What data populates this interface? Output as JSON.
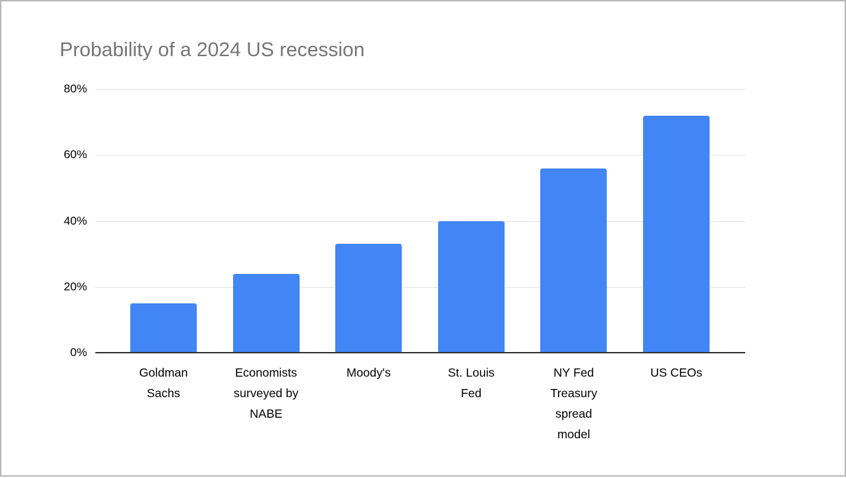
{
  "window": {
    "background": "#ffffff",
    "border_color": "#b7b7b7"
  },
  "chart_data": {
    "type": "bar",
    "title": "Probability of a 2024 US recession",
    "categories": [
      "Goldman Sachs",
      "Economists surveyed by NABE",
      "Moody's",
      "St. Louis Fed",
      "NY Fed Treasury spread model",
      "US CEOs"
    ],
    "category_display": [
      "Goldman\nSachs",
      "Economists\nsurveyed by\nNABE",
      "Moody's",
      "St. Louis\nFed",
      "NY Fed\nTreasury\nspread\nmodel",
      "US CEOs"
    ],
    "values": [
      15,
      24,
      33,
      40,
      56,
      72
    ],
    "unit": "%",
    "xlabel": "",
    "ylabel": "",
    "ylim": [
      0,
      80
    ],
    "yticks": [
      "0%",
      "20%",
      "40%",
      "60%",
      "80%"
    ],
    "ytick_values": [
      0,
      20,
      40,
      60,
      80
    ],
    "grid": "horizontal",
    "legend": "none",
    "bar_color": "#4285f4",
    "title_color": "#757575",
    "gridline_color": "#e3e3e3",
    "axis_line_color": "#333333"
  }
}
